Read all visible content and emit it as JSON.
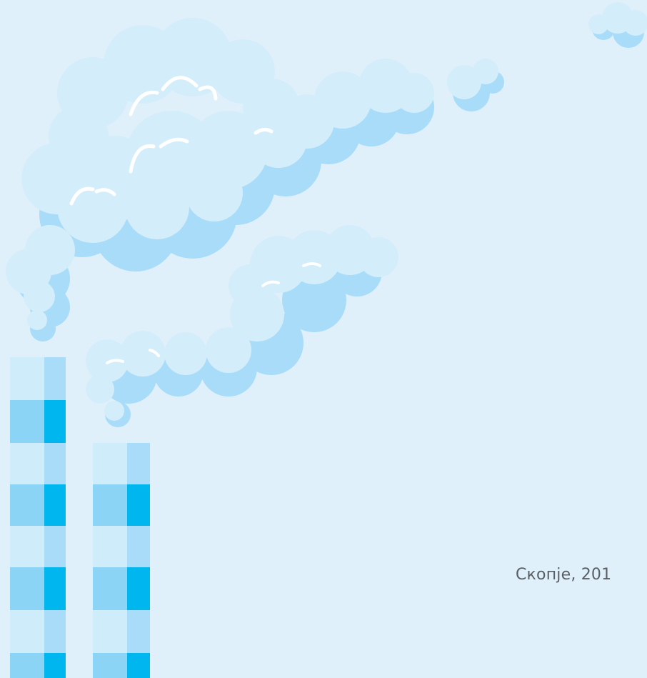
{
  "caption": {
    "place_date": "Скопје, 201"
  },
  "colors": {
    "background": "#dff0fb",
    "cloud_light": "#d4edfa",
    "cloud_shadow": "#a9dcf8",
    "cloud_highlight": "#ffffff",
    "chimney_pale": "#cfecfb",
    "chimney_light": "#a9dcf8",
    "chimney_mid": "#8bd4f5",
    "chimney_strong": "#00b6ee",
    "text": "#595f64"
  }
}
